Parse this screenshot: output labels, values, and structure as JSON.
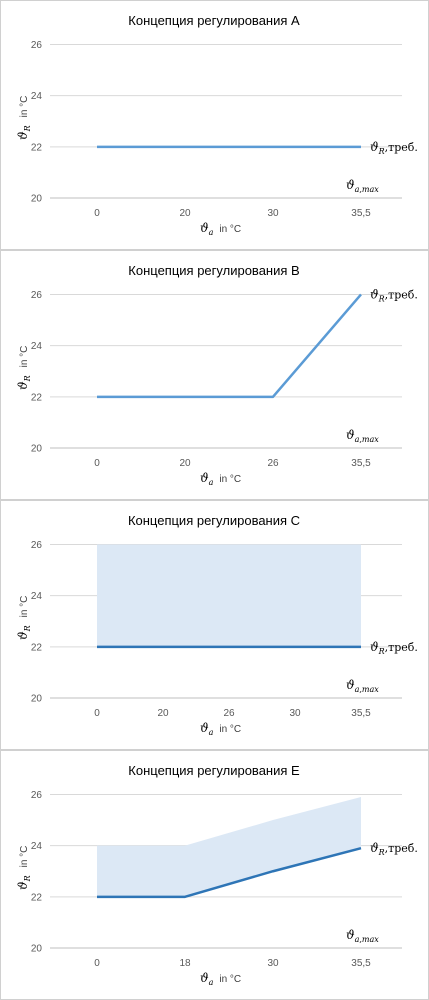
{
  "charts": [
    {
      "title": "Концепция регулирования A",
      "type": "line",
      "x_ticks": [
        "0",
        "20",
        "30",
        "35,5"
      ],
      "y_ticks": [
        "20",
        "22",
        "24",
        "26"
      ],
      "ylim": [
        20,
        26.8
      ],
      "line": [
        22,
        22,
        22,
        22
      ],
      "band_upper": null,
      "line_color": "#5b9bd5",
      "band_color": "#dce8f5",
      "x_symbol": "ϑ",
      "x_subscript": "a",
      "x_unit": "in °C",
      "y_symbol": "ϑ",
      "y_subscript": "R",
      "y_unit": "in °C",
      "line_label": {
        "symbol": "ϑ",
        "subscript": "R",
        "suffix": ",треб."
      },
      "max_label": {
        "symbol": "ϑ",
        "subscript": "a,max"
      }
    },
    {
      "title": "Концепция регулирования B",
      "type": "line",
      "x_ticks": [
        "0",
        "20",
        "26",
        "35,5"
      ],
      "y_ticks": [
        "20",
        "22",
        "24",
        "26"
      ],
      "ylim": [
        20,
        26.8
      ],
      "line": [
        22,
        22,
        22,
        26
      ],
      "band_upper": null,
      "line_color": "#5b9bd5",
      "band_color": "#dce8f5",
      "x_symbol": "ϑ",
      "x_subscript": "a",
      "x_unit": "in °C",
      "y_symbol": "ϑ",
      "y_subscript": "R",
      "y_unit": "in °C",
      "line_label": {
        "symbol": "ϑ",
        "subscript": "R",
        "suffix": ",треб."
      },
      "max_label": {
        "symbol": "ϑ",
        "subscript": "a,max"
      }
    },
    {
      "title": "Концепция регулирования C",
      "type": "area",
      "x_ticks": [
        "0",
        "20",
        "26",
        "30",
        "35,5"
      ],
      "y_ticks": [
        "20",
        "22",
        "24",
        "26"
      ],
      "ylim": [
        20,
        26.8
      ],
      "line": [
        22,
        22,
        22,
        22,
        22
      ],
      "band_upper": [
        26,
        26,
        26,
        26,
        26
      ],
      "line_color": "#2e75b6",
      "band_color": "#dce8f5",
      "x_symbol": "ϑ",
      "x_subscript": "a",
      "x_unit": "in °C",
      "y_symbol": "ϑ",
      "y_subscript": "R",
      "y_unit": "in °C",
      "line_label": {
        "symbol": "ϑ",
        "subscript": "R",
        "suffix": ",треб."
      },
      "max_label": {
        "symbol": "ϑ",
        "subscript": "a,max"
      }
    },
    {
      "title": "Концепция регулирования E",
      "type": "area",
      "x_ticks": [
        "0",
        "18",
        "30",
        "35,5"
      ],
      "y_ticks": [
        "20",
        "22",
        "24",
        "26"
      ],
      "ylim": [
        20,
        26.8
      ],
      "line": [
        22,
        22,
        23,
        23.9
      ],
      "band_upper": [
        24,
        24,
        25,
        25.9
      ],
      "line_color": "#2e75b6",
      "band_color": "#dce8f5",
      "x_symbol": "ϑ",
      "x_subscript": "a",
      "x_unit": "in °C",
      "y_symbol": "ϑ",
      "y_subscript": "R",
      "y_unit": "in °C",
      "line_label": {
        "symbol": "ϑ",
        "subscript": "R",
        "suffix": ",треб."
      },
      "max_label": {
        "symbol": "ϑ",
        "subscript": "a,max"
      }
    }
  ]
}
